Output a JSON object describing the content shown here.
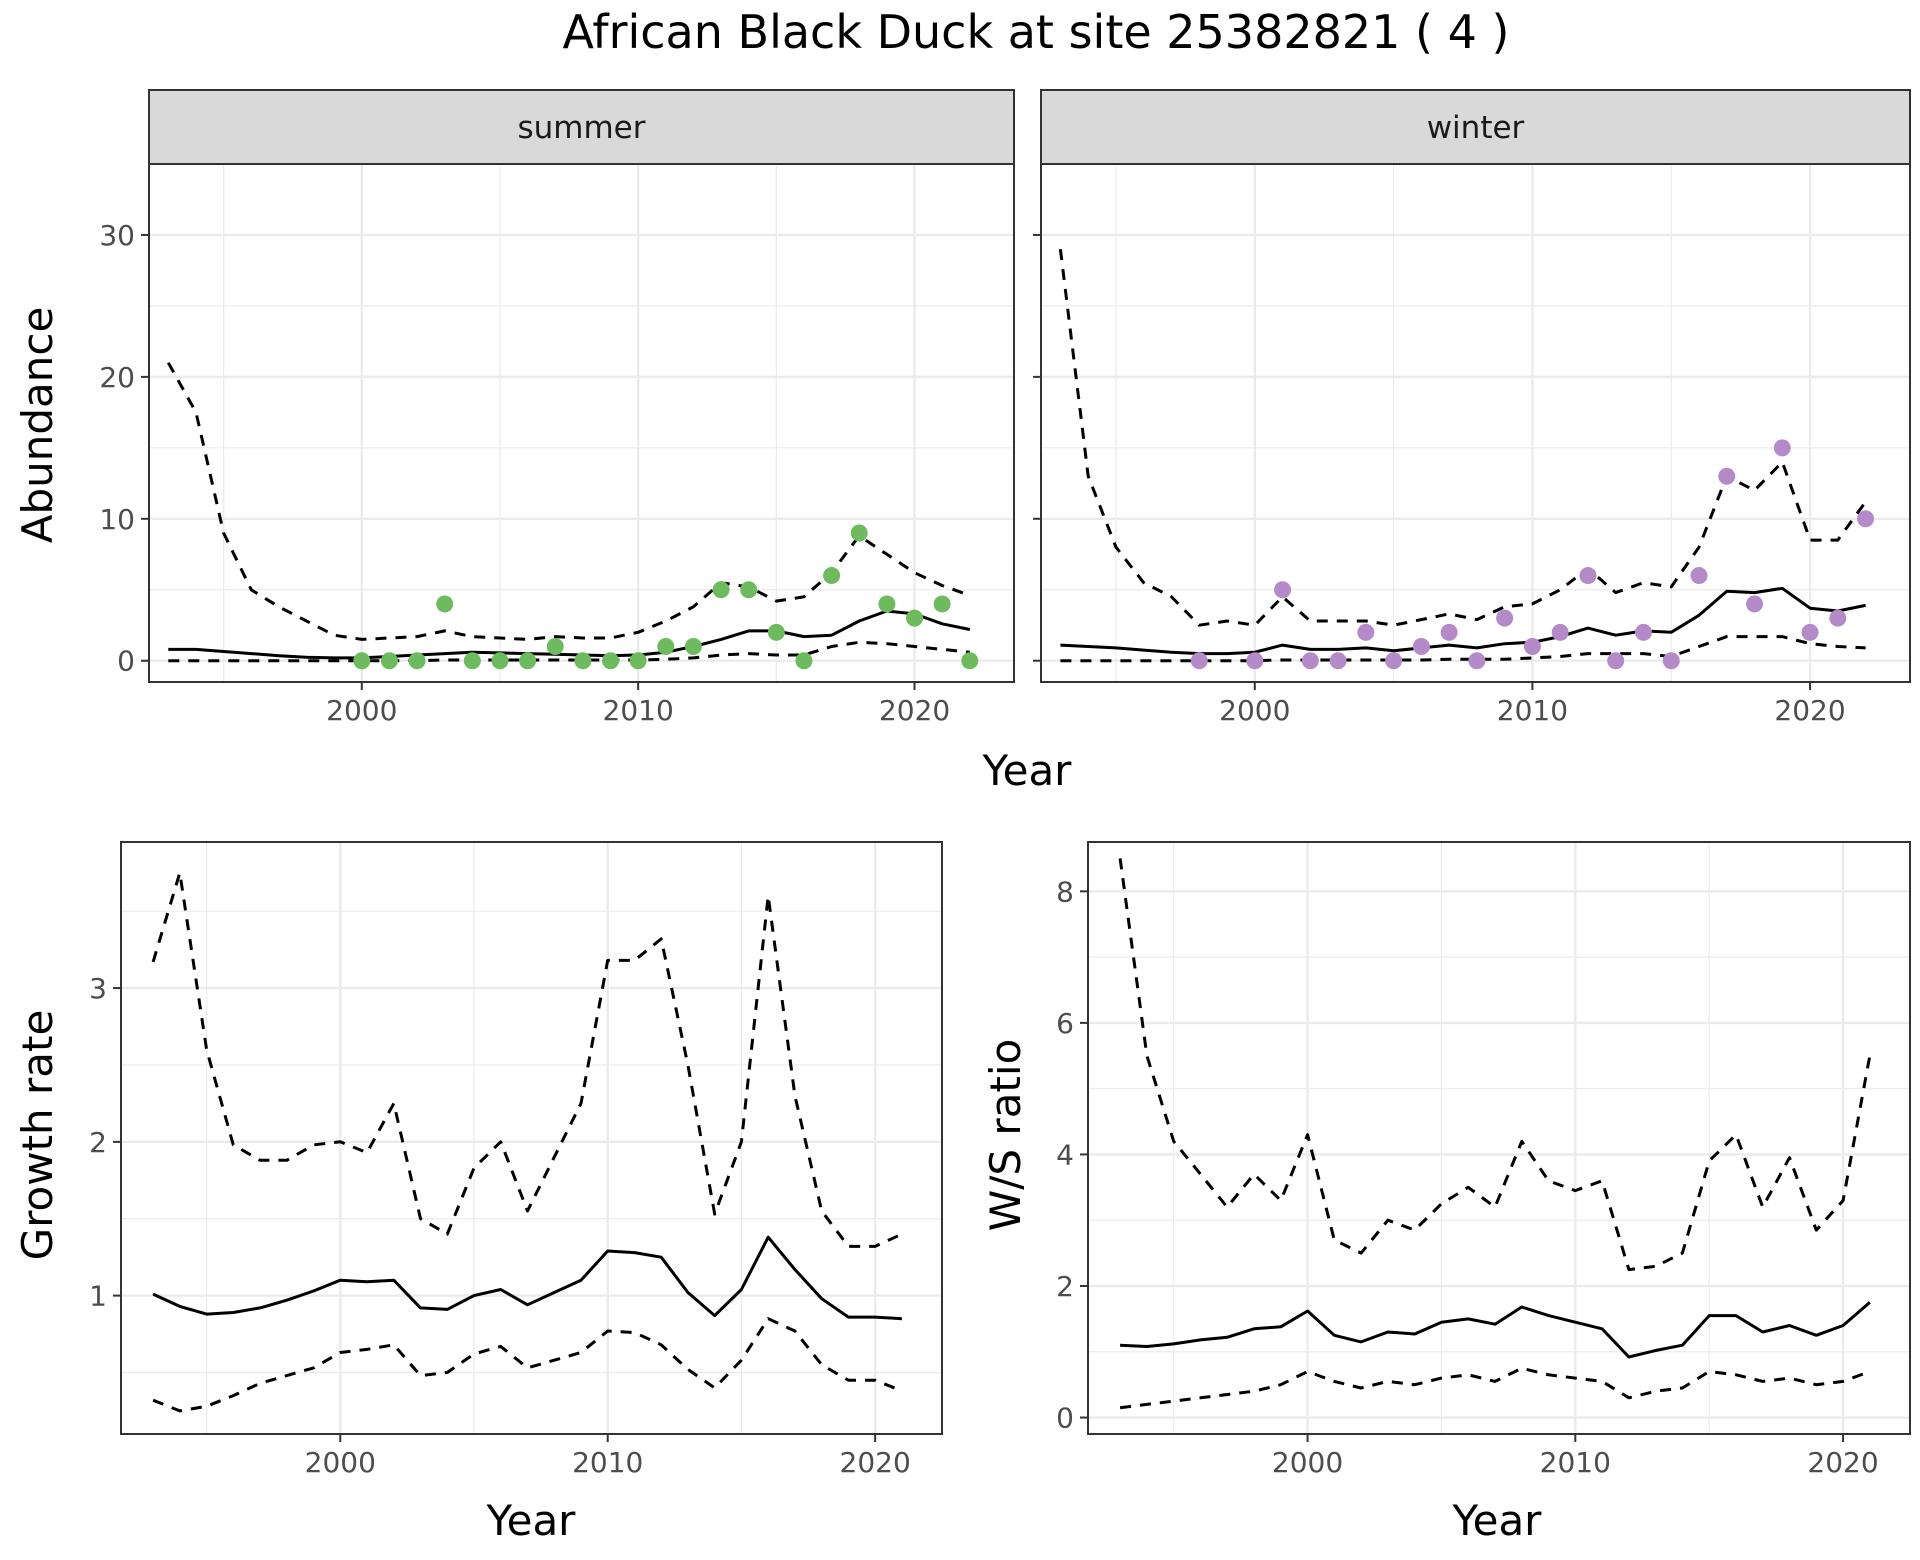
{
  "title": "African Black Duck at site 25382821 ( 4 )",
  "colors": {
    "summer_points": "#6dbb5e",
    "winter_points": "#b48ac9",
    "line": "#000000",
    "grid": "#ebebeb",
    "strip_bg": "#d9d9d9"
  },
  "chart_data": [
    {
      "type": "line",
      "facet": "summer",
      "xlabel": "Year",
      "ylabel": "Abundance",
      "xlim": [
        1992.3,
        2023.6
      ],
      "ylim": [
        -1.5,
        35
      ],
      "xticks": [
        2000,
        2010,
        2020
      ],
      "yticks": [
        0,
        10,
        20,
        30
      ],
      "grid": true,
      "x": [
        1993,
        1994,
        1995,
        1996,
        1997,
        1998,
        1999,
        2000,
        2001,
        2002,
        2003,
        2004,
        2005,
        2006,
        2007,
        2008,
        2009,
        2010,
        2011,
        2012,
        2013,
        2014,
        2015,
        2016,
        2017,
        2018,
        2019,
        2020,
        2021,
        2022
      ],
      "series": [
        {
          "role": "estimate",
          "style": "solid",
          "values": [
            0.8,
            0.8,
            0.65,
            0.5,
            0.35,
            0.25,
            0.2,
            0.2,
            0.3,
            0.4,
            0.5,
            0.6,
            0.55,
            0.5,
            0.45,
            0.4,
            0.35,
            0.4,
            0.6,
            1.0,
            1.5,
            2.1,
            2.1,
            1.7,
            1.8,
            2.8,
            3.5,
            3.3,
            2.6,
            2.2
          ]
        },
        {
          "role": "upper",
          "style": "dashed",
          "values": [
            21,
            17.5,
            9,
            5,
            3.8,
            2.8,
            1.8,
            1.5,
            1.6,
            1.7,
            2.1,
            1.7,
            1.6,
            1.5,
            1.7,
            1.6,
            1.6,
            2.0,
            2.8,
            3.8,
            5.5,
            5.2,
            4.2,
            4.5,
            6.2,
            8.8,
            7.5,
            6.2,
            5.3,
            4.6
          ]
        },
        {
          "role": "lower",
          "style": "dashed",
          "values": [
            0,
            0,
            0,
            0,
            0,
            0,
            0,
            0,
            0,
            0,
            0.05,
            0.05,
            0.05,
            0.05,
            0.05,
            0.05,
            0.05,
            0.05,
            0.1,
            0.2,
            0.4,
            0.5,
            0.4,
            0.4,
            1.0,
            1.3,
            1.2,
            1.0,
            0.8,
            0.6
          ]
        },
        {
          "role": "observed",
          "style": "points",
          "x": [
            2000,
            2001,
            2002,
            2003,
            2004,
            2005,
            2006,
            2007,
            2008,
            2009,
            2010,
            2011,
            2012,
            2013,
            2014,
            2015,
            2016,
            2017,
            2018,
            2019,
            2020,
            2021,
            2022
          ],
          "values": [
            0,
            0,
            0,
            4,
            0,
            0,
            0,
            1,
            0,
            0,
            0,
            1,
            1,
            5,
            5,
            2,
            0,
            6,
            9,
            4,
            3,
            4,
            0
          ]
        }
      ]
    },
    {
      "type": "line",
      "facet": "winter",
      "xlabel": "Year",
      "ylabel": "Abundance",
      "xlim": [
        1992.3,
        2023.6
      ],
      "ylim": [
        -1.5,
        35
      ],
      "xticks": [
        2000,
        2010,
        2020
      ],
      "yticks": [
        0,
        10,
        20,
        30
      ],
      "grid": true,
      "x": [
        1993,
        1994,
        1995,
        1996,
        1997,
        1998,
        1999,
        2000,
        2001,
        2002,
        2003,
        2004,
        2005,
        2006,
        2007,
        2008,
        2009,
        2010,
        2011,
        2012,
        2013,
        2014,
        2015,
        2016,
        2017,
        2018,
        2019,
        2020,
        2021,
        2022
      ],
      "series": [
        {
          "role": "estimate",
          "style": "solid",
          "values": [
            1.1,
            1.0,
            0.9,
            0.75,
            0.6,
            0.5,
            0.5,
            0.6,
            1.1,
            0.8,
            0.8,
            0.9,
            0.7,
            0.9,
            1.1,
            0.9,
            1.2,
            1.3,
            1.7,
            2.3,
            1.8,
            2.1,
            2.0,
            3.2,
            4.9,
            4.8,
            5.1,
            3.7,
            3.5,
            3.9
          ]
        },
        {
          "role": "upper",
          "style": "dashed",
          "values": [
            29,
            13,
            8,
            5.5,
            4.5,
            2.5,
            2.8,
            2.5,
            4.5,
            2.8,
            2.8,
            2.8,
            2.5,
            2.9,
            3.3,
            2.9,
            3.8,
            4.0,
            5.0,
            6.5,
            4.8,
            5.5,
            5.2,
            8.0,
            13,
            12,
            14,
            8.5,
            8.5,
            11.2
          ]
        },
        {
          "role": "lower",
          "style": "dashed",
          "values": [
            0,
            0,
            0,
            0,
            0,
            0,
            0,
            0,
            0.05,
            0.05,
            0.05,
            0.05,
            0.05,
            0.05,
            0.1,
            0.1,
            0.1,
            0.2,
            0.3,
            0.5,
            0.5,
            0.5,
            0.3,
            1.0,
            1.7,
            1.7,
            1.7,
            1.2,
            1.0,
            0.9
          ]
        },
        {
          "role": "observed",
          "style": "points",
          "x": [
            1998,
            2000,
            2001,
            2002,
            2003,
            2004,
            2005,
            2006,
            2007,
            2008,
            2009,
            2010,
            2011,
            2012,
            2013,
            2014,
            2015,
            2016,
            2017,
            2018,
            2019,
            2020,
            2021,
            2022
          ],
          "values": [
            0,
            0,
            5,
            0,
            0,
            2,
            0,
            1,
            2,
            0,
            3,
            1,
            2,
            6,
            0,
            2,
            0,
            6,
            13,
            4,
            15,
            2,
            3,
            10
          ]
        }
      ]
    },
    {
      "type": "line",
      "xlabel": "Year",
      "ylabel": "Growth rate",
      "xlim": [
        1991.8,
        2022.5
      ],
      "ylim": [
        0.1,
        3.95
      ],
      "xticks": [
        2000,
        2010,
        2020
      ],
      "yticks": [
        1,
        2,
        3
      ],
      "grid": true,
      "x": [
        1993,
        1994,
        1995,
        1996,
        1997,
        1998,
        1999,
        2000,
        2001,
        2002,
        2003,
        2004,
        2005,
        2006,
        2007,
        2008,
        2009,
        2010,
        2011,
        2012,
        2013,
        2014,
        2015,
        2016,
        2017,
        2018,
        2019,
        2020,
        2021
      ],
      "series": [
        {
          "role": "estimate",
          "style": "solid",
          "values": [
            1.01,
            0.93,
            0.88,
            0.89,
            0.92,
            0.97,
            1.03,
            1.1,
            1.09,
            1.1,
            0.92,
            0.91,
            1.0,
            1.04,
            0.94,
            1.02,
            1.1,
            1.29,
            1.28,
            1.25,
            1.02,
            0.87,
            1.04,
            1.38,
            1.17,
            0.98,
            0.86,
            0.86,
            0.85
          ]
        },
        {
          "role": "upper",
          "style": "dashed",
          "values": [
            3.17,
            3.75,
            2.6,
            1.98,
            1.88,
            1.88,
            1.98,
            2.0,
            1.93,
            2.25,
            1.5,
            1.4,
            1.83,
            2.0,
            1.55,
            1.9,
            2.25,
            3.18,
            3.18,
            3.32,
            2.5,
            1.53,
            2.0,
            3.6,
            2.3,
            1.55,
            1.32,
            1.32,
            1.4
          ]
        },
        {
          "role": "lower",
          "style": "dashed",
          "values": [
            0.32,
            0.25,
            0.28,
            0.35,
            0.43,
            0.48,
            0.53,
            0.63,
            0.65,
            0.68,
            0.48,
            0.5,
            0.62,
            0.67,
            0.53,
            0.58,
            0.63,
            0.77,
            0.76,
            0.68,
            0.52,
            0.4,
            0.58,
            0.85,
            0.77,
            0.55,
            0.45,
            0.45,
            0.38
          ]
        }
      ]
    },
    {
      "type": "line",
      "xlabel": "Year",
      "ylabel": "W/S ratio",
      "xlim": [
        1991.8,
        2022.5
      ],
      "ylim": [
        -0.25,
        8.75
      ],
      "xticks": [
        2000,
        2010,
        2020
      ],
      "yticks": [
        0,
        2,
        4,
        6,
        8
      ],
      "grid": true,
      "x": [
        1993,
        1994,
        1995,
        1996,
        1997,
        1998,
        1999,
        2000,
        2001,
        2002,
        2003,
        2004,
        2005,
        2006,
        2007,
        2008,
        2009,
        2010,
        2011,
        2012,
        2013,
        2014,
        2015,
        2016,
        2017,
        2018,
        2019,
        2020,
        2021
      ],
      "series": [
        {
          "role": "estimate",
          "style": "solid",
          "values": [
            1.1,
            1.08,
            1.12,
            1.18,
            1.22,
            1.35,
            1.38,
            1.62,
            1.25,
            1.15,
            1.3,
            1.27,
            1.45,
            1.5,
            1.42,
            1.68,
            1.55,
            1.45,
            1.35,
            0.92,
            1.02,
            1.1,
            1.55,
            1.55,
            1.3,
            1.4,
            1.25,
            1.4,
            1.75
          ]
        },
        {
          "role": "upper",
          "style": "dashed",
          "values": [
            8.5,
            5.5,
            4.2,
            3.7,
            3.2,
            3.7,
            3.3,
            4.3,
            2.7,
            2.5,
            3.0,
            2.85,
            3.25,
            3.5,
            3.2,
            4.2,
            3.6,
            3.45,
            3.6,
            2.25,
            2.3,
            2.5,
            3.9,
            4.3,
            3.2,
            3.95,
            2.85,
            3.3,
            5.5
          ]
        },
        {
          "role": "lower",
          "style": "dashed",
          "values": [
            0.15,
            0.2,
            0.25,
            0.3,
            0.35,
            0.4,
            0.5,
            0.7,
            0.55,
            0.45,
            0.55,
            0.5,
            0.6,
            0.65,
            0.55,
            0.75,
            0.65,
            0.6,
            0.55,
            0.3,
            0.4,
            0.45,
            0.7,
            0.65,
            0.55,
            0.6,
            0.5,
            0.55,
            0.7
          ]
        }
      ]
    }
  ]
}
